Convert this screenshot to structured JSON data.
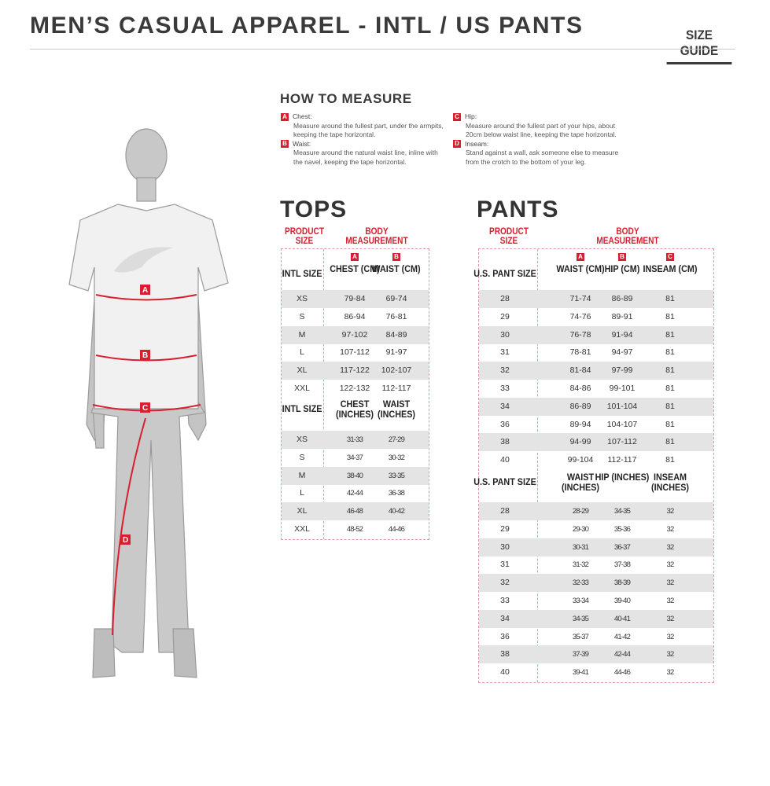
{
  "header": {
    "title": "MEN’S CASUAL APPAREL - INTL / US PANTS",
    "size_guide": "SIZE GUIDE"
  },
  "how_to_measure": {
    "title": "HOW TO MEASURE",
    "items": [
      {
        "badge": "A",
        "label": "Chest:",
        "text": "Measure around the fullest part, under the armpits, keeping the tape horizontal."
      },
      {
        "badge": "B",
        "label": "Waist:",
        "text": "Measure around the natural waist line, inline with the navel, keeping the tape horizontal."
      },
      {
        "badge": "C",
        "label": "Hip:",
        "text": "Measure around the fullest part of your hips, about 20cm below waist line, keeping the tape horizontal."
      },
      {
        "badge": "D",
        "label": "Inseam:",
        "text": "Stand against a wall, ask someone else to measure from the crotch to the bottom of your leg."
      }
    ]
  },
  "figure": {
    "labels": [
      "A",
      "B",
      "C",
      "D"
    ]
  },
  "accent_color": "#d71f30",
  "tops": {
    "title": "TOPS",
    "product_size": "PRODUCT SIZE",
    "body_measurement": "BODY MEASUREMENT",
    "cm": {
      "badges": [
        "A",
        "B"
      ],
      "headers": [
        "INTL SIZE",
        "CHEST (CM)",
        "WAIST (CM)"
      ],
      "rows": [
        [
          "XS",
          "79-84",
          "69-74"
        ],
        [
          "S",
          "86-94",
          "76-81"
        ],
        [
          "M",
          "97-102",
          "84-89"
        ],
        [
          "L",
          "107-112",
          "91-97"
        ],
        [
          "XL",
          "117-122",
          "102-107"
        ],
        [
          "XXL",
          "122-132",
          "112-117"
        ]
      ]
    },
    "inches": {
      "headers": [
        "INTL SIZE",
        "CHEST (INCHES)",
        "WAIST (INCHES)"
      ],
      "rows": [
        [
          "XS",
          "31-33",
          "27-29"
        ],
        [
          "S",
          "34-37",
          "30-32"
        ],
        [
          "M",
          "38-40",
          "33-35"
        ],
        [
          "L",
          "42-44",
          "36-38"
        ],
        [
          "XL",
          "46-48",
          "40-42"
        ],
        [
          "XXL",
          "48-52",
          "44-46"
        ]
      ]
    }
  },
  "pants": {
    "title": "PANTS",
    "product_size": "PRODUCT SIZE",
    "body_measurement": "BODY MEASUREMENT",
    "cm": {
      "badges": [
        "A",
        "B",
        "C"
      ],
      "headers": [
        "U.S. PANT SIZE",
        "WAIST (CM)",
        "HIP (CM)",
        "INSEAM (CM)"
      ],
      "rows": [
        [
          "28",
          "71-74",
          "86-89",
          "81"
        ],
        [
          "29",
          "74-76",
          "89-91",
          "81"
        ],
        [
          "30",
          "76-78",
          "91-94",
          "81"
        ],
        [
          "31",
          "78-81",
          "94-97",
          "81"
        ],
        [
          "32",
          "81-84",
          "97-99",
          "81"
        ],
        [
          "33",
          "84-86",
          "99-101",
          "81"
        ],
        [
          "34",
          "86-89",
          "101-104",
          "81"
        ],
        [
          "36",
          "89-94",
          "104-107",
          "81"
        ],
        [
          "38",
          "94-99",
          "107-112",
          "81"
        ],
        [
          "40",
          "99-104",
          "112-117",
          "81"
        ]
      ]
    },
    "inches": {
      "headers": [
        "U.S. PANT SIZE",
        "WAIST (INCHES)",
        "HIP (INCHES)",
        "INSEAM (INCHES)"
      ],
      "rows": [
        [
          "28",
          "28-29",
          "34-35",
          "32"
        ],
        [
          "29",
          "29-30",
          "35-36",
          "32"
        ],
        [
          "30",
          "30-31",
          "36-37",
          "32"
        ],
        [
          "31",
          "31-32",
          "37-38",
          "32"
        ],
        [
          "32",
          "32-33",
          "38-39",
          "32"
        ],
        [
          "33",
          "33-34",
          "39-40",
          "32"
        ],
        [
          "34",
          "34-35",
          "40-41",
          "32"
        ],
        [
          "36",
          "35-37",
          "41-42",
          "32"
        ],
        [
          "38",
          "37-39",
          "42-44",
          "32"
        ],
        [
          "40",
          "39-41",
          "44-46",
          "32"
        ]
      ]
    }
  }
}
